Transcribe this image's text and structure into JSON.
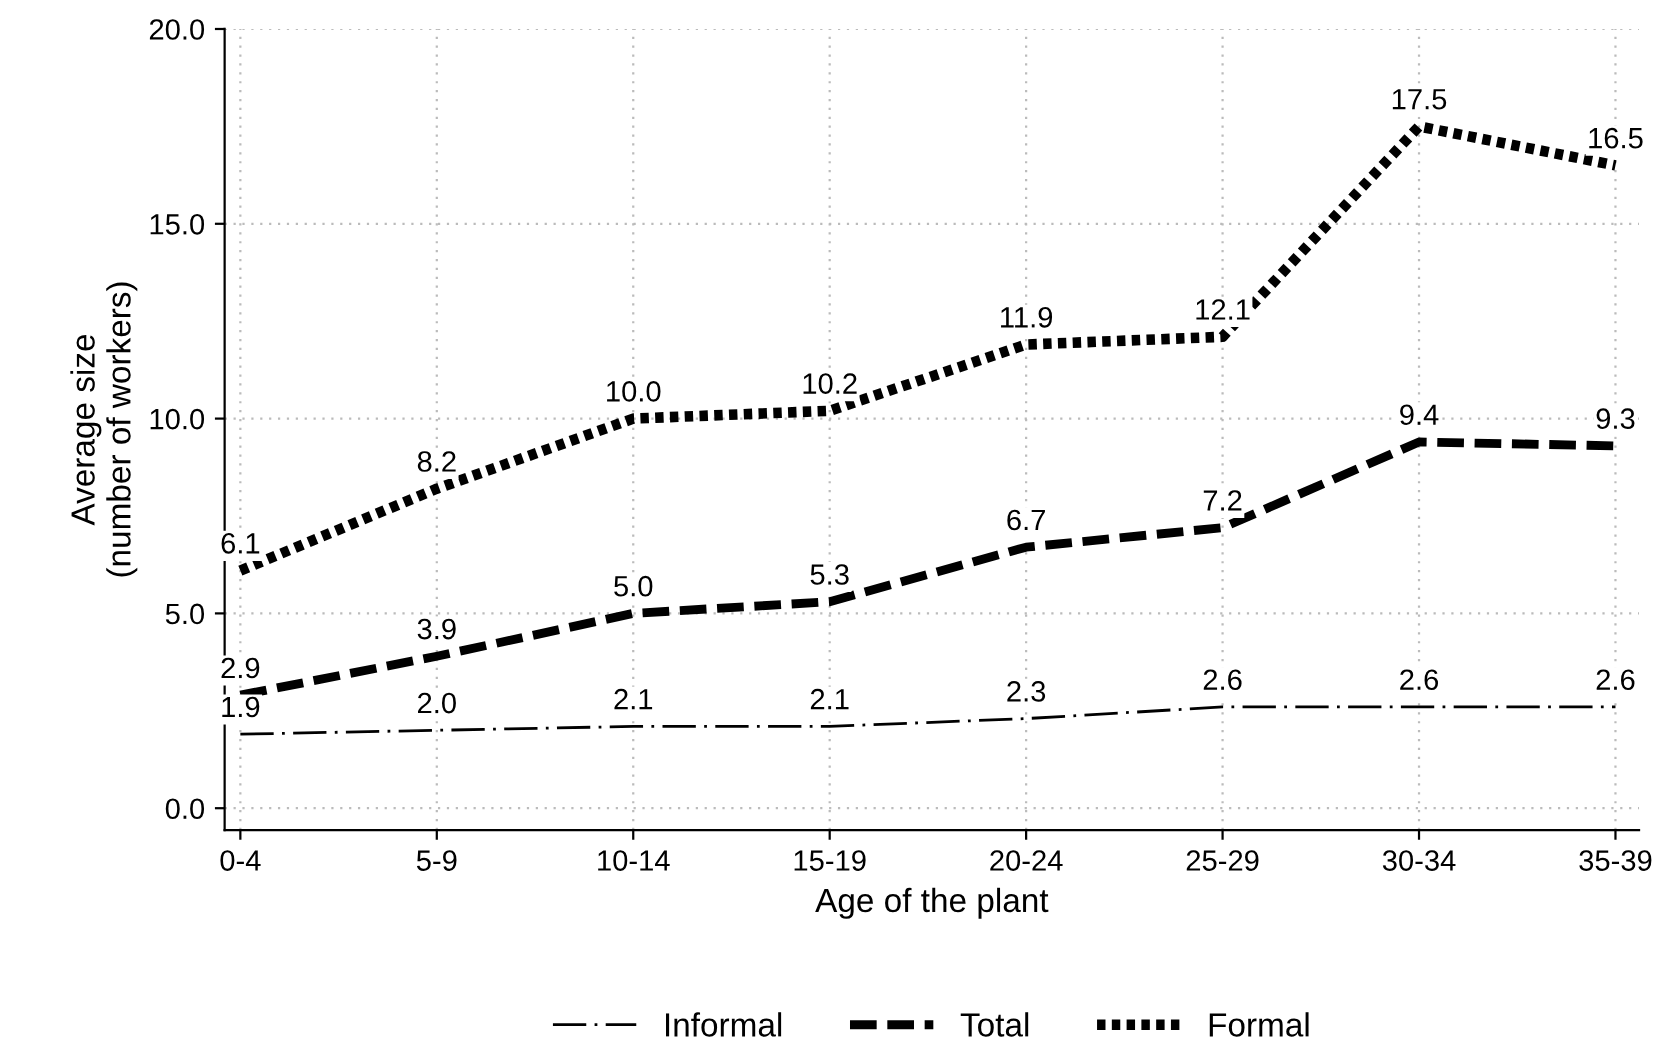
{
  "chart_data": {
    "type": "line",
    "xlabel": "Age of the plant",
    "ylabel": "Average size\n(number of workers)",
    "categories": [
      "0-4",
      "5-9",
      "10-14",
      "15-19",
      "20-24",
      "25-29",
      "30-34",
      "35-39"
    ],
    "series": [
      {
        "name": "Informal",
        "color": "#000000",
        "line_style": "dashdot",
        "values": [
          1.9,
          2.0,
          2.1,
          2.1,
          2.3,
          2.6,
          2.6,
          2.6
        ],
        "value_labels": [
          "1.9",
          "2.0",
          "2.1",
          "2.1",
          "2.3",
          "2.6",
          "2.6",
          "2.6"
        ]
      },
      {
        "name": "Total",
        "color": "#000000",
        "line_style": "dashed",
        "values": [
          2.9,
          3.9,
          5.0,
          5.3,
          6.7,
          7.2,
          9.4,
          9.3
        ],
        "value_labels": [
          "2.9",
          "3.9",
          "5.0",
          "5.3",
          "6.7",
          "7.2",
          "9.4",
          "9.3"
        ]
      },
      {
        "name": "Formal",
        "color": "#000000",
        "line_style": "dotted",
        "values": [
          6.1,
          8.2,
          10.0,
          10.2,
          11.9,
          12.1,
          17.5,
          16.5
        ],
        "value_labels": [
          "6.1",
          "8.2",
          "10.0",
          "10.2",
          "11.9",
          "12.1",
          "17.5",
          "16.5"
        ]
      }
    ],
    "ylim": [
      -0.56,
      20
    ],
    "yticks": [
      {
        "value": 0,
        "label": "0.0"
      },
      {
        "value": 5,
        "label": "5.0"
      },
      {
        "value": 10,
        "label": "10.0"
      },
      {
        "value": 15,
        "label": "15.0"
      },
      {
        "value": 20,
        "label": "20.0"
      }
    ],
    "grid": true,
    "legend": "bottom",
    "marker": "none"
  }
}
